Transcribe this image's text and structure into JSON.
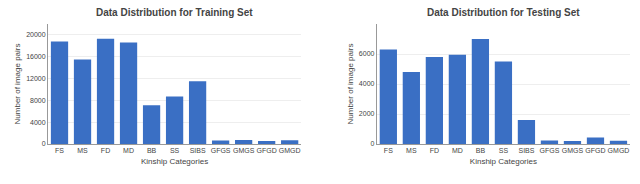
{
  "chart_data": [
    {
      "type": "bar",
      "title": "Data Distribution for Training Set",
      "categories": [
        "FS",
        "MS",
        "FD",
        "MD",
        "BB",
        "SS",
        "SIBS",
        "GFGS",
        "GMGS",
        "GFGD",
        "GMGD"
      ],
      "values": [
        18800,
        15500,
        19300,
        18600,
        7100,
        8700,
        11500,
        650,
        750,
        550,
        700
      ],
      "xlabel": "Kinship Categories",
      "ylabel": "Number of image pairs",
      "ylim": [
        0,
        22000
      ],
      "yticks": [
        0,
        4000,
        8000,
        12000,
        16000,
        20000
      ],
      "color": "#3a6fc4",
      "grid": true
    },
    {
      "type": "bar",
      "title": "Data Distribution for Testing Set",
      "categories": [
        "FS",
        "MS",
        "FD",
        "MD",
        "BB",
        "SS",
        "SIBS",
        "GFGS",
        "GMGS",
        "GFGD",
        "GMGD"
      ],
      "values": [
        6300,
        4800,
        5800,
        5950,
        7000,
        5500,
        1600,
        240,
        200,
        430,
        220
      ],
      "xlabel": "Kinship Categories",
      "ylabel": "Number of image pairs",
      "ylim": [
        0,
        8000
      ],
      "yticks": [
        0,
        2000,
        4000,
        6000
      ],
      "color": "#3a6fc4",
      "grid": true
    }
  ]
}
